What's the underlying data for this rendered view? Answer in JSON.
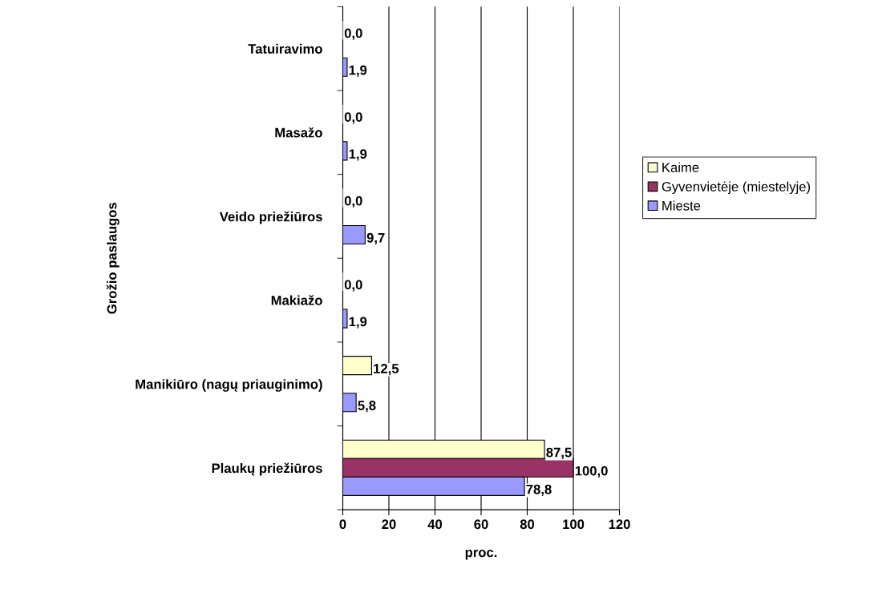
{
  "chart_data": {
    "type": "bar",
    "orientation": "horizontal",
    "categories": [
      "Tatuiravimo",
      "Masažo",
      "Veido priežiūros",
      "Makiažo",
      "Manikiūro (nagų priauginimo)",
      "Plaukų priežiūros"
    ],
    "series": [
      {
        "name": "Kaime",
        "color": "#ffffcc",
        "values": [
          0.0,
          0.0,
          0.0,
          0.0,
          12.5,
          87.5
        ],
        "value_labels": [
          "0,0",
          "0,0",
          "0,0",
          "0,0",
          "12,5",
          "87,5"
        ]
      },
      {
        "name": "Gyvenvietėje (miestelyje)",
        "color": "#993366",
        "values": [
          null,
          null,
          null,
          null,
          null,
          100.0
        ],
        "value_labels": [
          null,
          null,
          null,
          null,
          null,
          "100,0"
        ]
      },
      {
        "name": "Mieste",
        "color": "#9999ff",
        "values": [
          1.9,
          1.9,
          9.7,
          1.9,
          5.8,
          78.8
        ],
        "value_labels": [
          "1,9",
          "1,9",
          "9,7",
          "1,9",
          "5,8",
          "78,8"
        ]
      }
    ],
    "xlabel": "proc.",
    "ylabel": "Grožio paslaugos",
    "xlim": [
      0,
      120
    ],
    "xticks": [
      0,
      20,
      40,
      60,
      80,
      100,
      120
    ],
    "grid": "x",
    "legend": "right"
  }
}
